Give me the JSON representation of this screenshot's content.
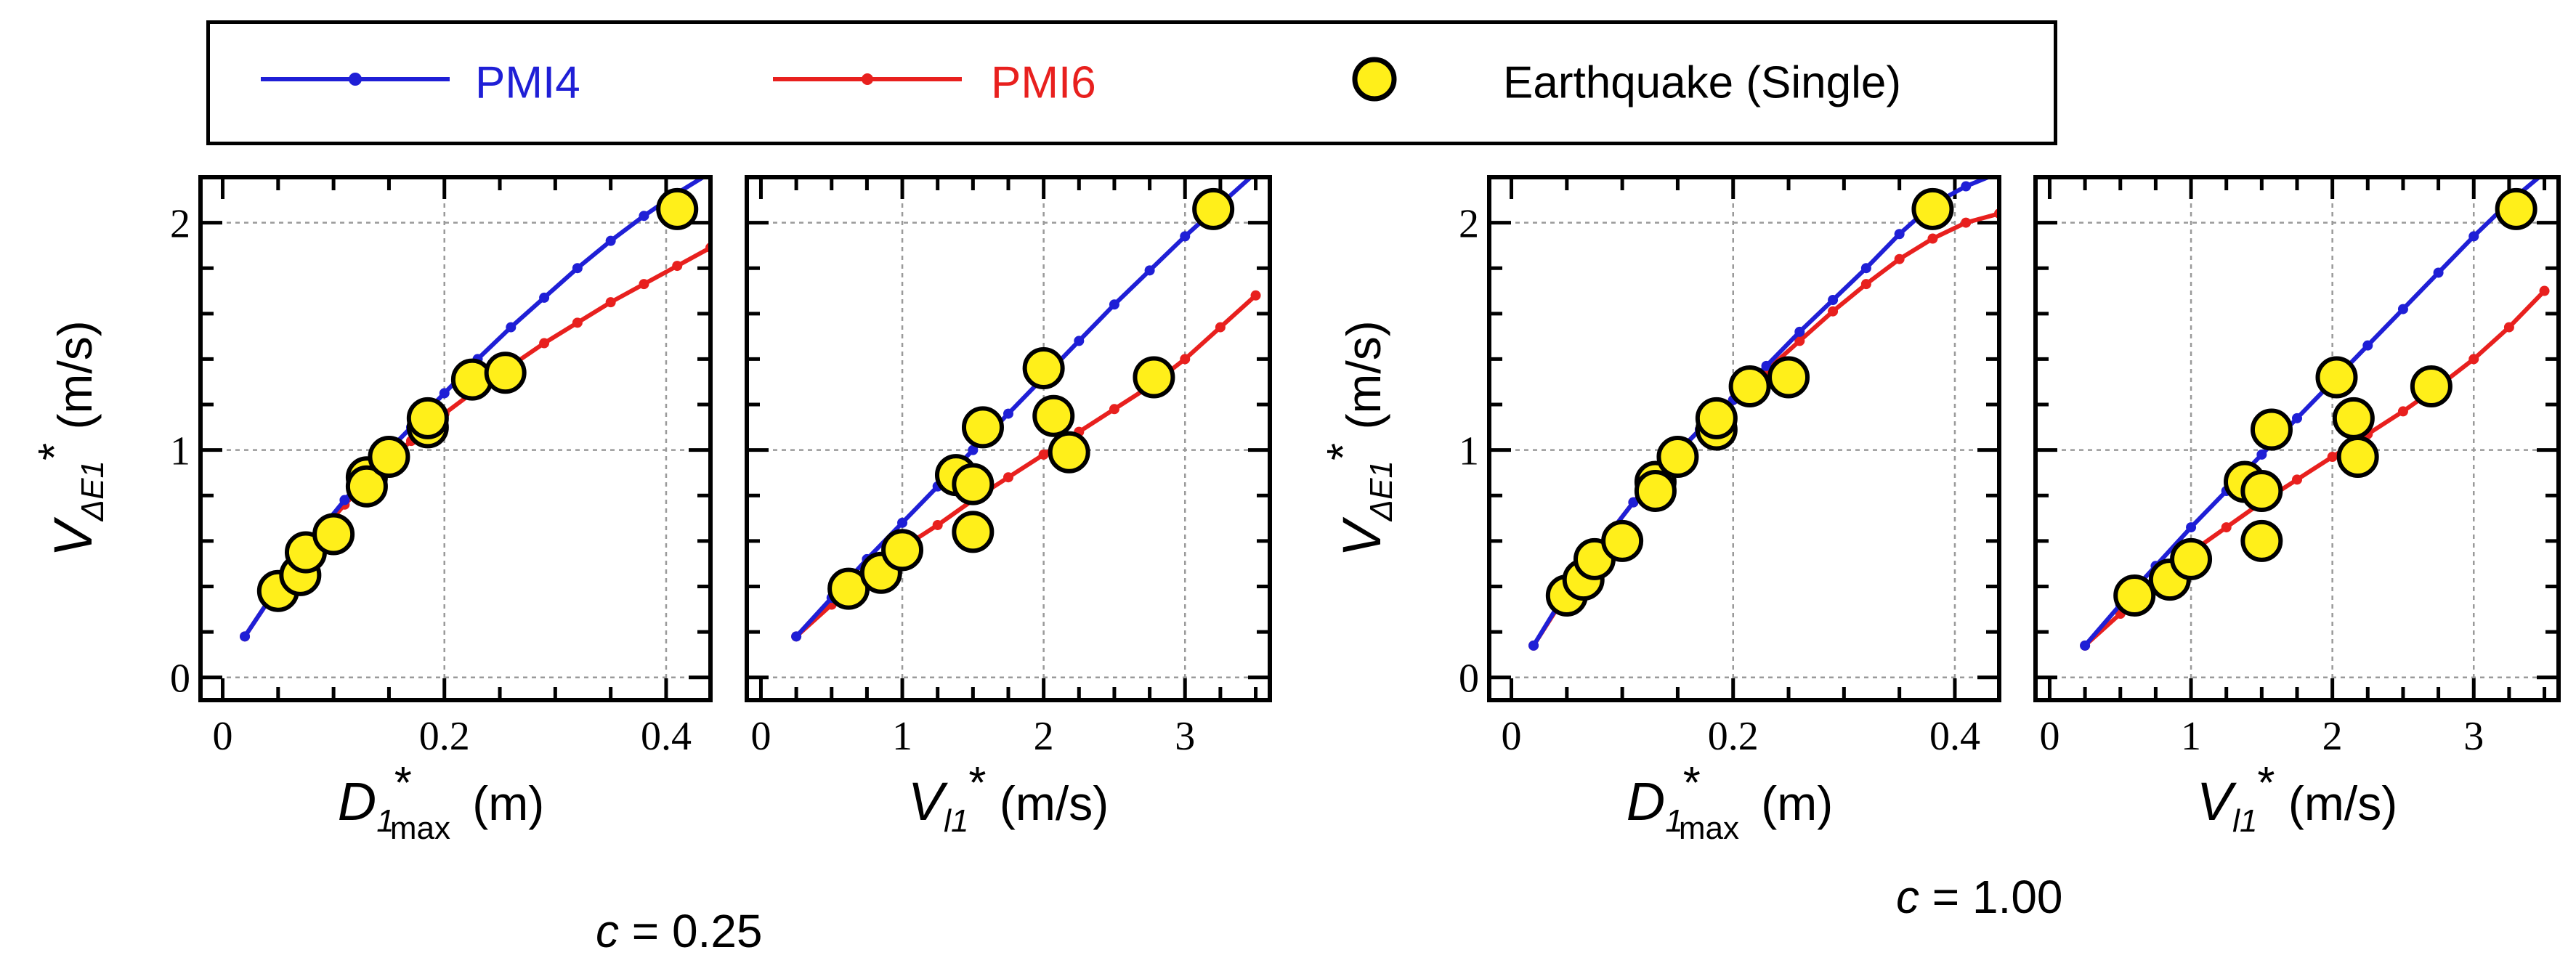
{
  "legend": {
    "pmi4_label": "PMI4",
    "pmi6_label": "PMI6",
    "earthquake_label": "Earthquake (Single)"
  },
  "colors": {
    "pmi4": "#1f1fd6",
    "pmi6": "#e8201e",
    "earthquake_fill": "#ffef1a",
    "grid": "#9a9a9a"
  },
  "captions": {
    "left": {
      "var": "c",
      "text": " = 0.25"
    },
    "right": {
      "var": "c",
      "text": " = 1.00"
    }
  },
  "axis_titles": {
    "y": {
      "main": "V",
      "sub": "ΔE1",
      "sup": "*",
      "unit": " (m/s)"
    },
    "x_disp": {
      "main": "D",
      "sub": "1",
      "sup": "*",
      "sub2": "max",
      "unit": " (m)"
    },
    "x_vel": {
      "main": "V",
      "sub": "l1",
      "sup": "*",
      "unit": " (m/s)"
    }
  },
  "chart_data": [
    {
      "type": "scatter+line",
      "id": "c025-disp",
      "group": "c = 0.25",
      "xlabel": "D1*max (m)",
      "ylabel": "VΔE1* (m/s)",
      "xlim": [
        -0.02,
        0.44
      ],
      "ylim": [
        -0.1,
        2.2
      ],
      "xticks": [
        0,
        0.2,
        0.4
      ],
      "xtick_labels": [
        "0",
        "0.2",
        "0.4"
      ],
      "yticks": [
        0,
        1,
        2
      ],
      "ytick_labels": [
        "0",
        "1",
        "2"
      ],
      "show_yticklabels": true,
      "series": [
        {
          "name": "PMI4",
          "x": [
            0.02,
            0.05,
            0.08,
            0.11,
            0.14,
            0.17,
            0.2,
            0.23,
            0.26,
            0.29,
            0.32,
            0.35,
            0.38,
            0.41,
            0.44
          ],
          "y": [
            0.18,
            0.4,
            0.6,
            0.78,
            0.95,
            1.1,
            1.25,
            1.4,
            1.54,
            1.67,
            1.8,
            1.92,
            2.03,
            2.13,
            2.22
          ]
        },
        {
          "name": "PMI6",
          "x": [
            0.02,
            0.05,
            0.08,
            0.11,
            0.14,
            0.17,
            0.2,
            0.23,
            0.26,
            0.29,
            0.32,
            0.35,
            0.38,
            0.41,
            0.44
          ],
          "y": [
            0.18,
            0.4,
            0.59,
            0.76,
            0.91,
            1.04,
            1.16,
            1.27,
            1.37,
            1.47,
            1.56,
            1.65,
            1.73,
            1.81,
            1.89
          ]
        },
        {
          "name": "Earthquake (Single)",
          "x": [
            0.05,
            0.07,
            0.075,
            0.1,
            0.13,
            0.13,
            0.15,
            0.185,
            0.185,
            0.225,
            0.255,
            0.41
          ],
          "y": [
            0.38,
            0.45,
            0.55,
            0.63,
            0.88,
            0.84,
            0.97,
            1.1,
            1.14,
            1.31,
            1.34,
            2.06
          ]
        }
      ]
    },
    {
      "type": "scatter+line",
      "id": "c025-vel",
      "group": "c = 0.25",
      "xlabel": "Vl1* (m/s)",
      "ylabel": "VΔE1* (m/s)",
      "xlim": [
        -0.1,
        3.6
      ],
      "ylim": [
        -0.1,
        2.2
      ],
      "xticks": [
        0,
        1,
        2,
        3
      ],
      "xtick_labels": [
        "0",
        "1",
        "2",
        "3"
      ],
      "yticks": [
        0,
        1,
        2
      ],
      "ytick_labels": [
        "0",
        "1",
        "2"
      ],
      "show_yticklabels": false,
      "series": [
        {
          "name": "PMI4",
          "x": [
            0.25,
            0.5,
            0.75,
            1.0,
            1.25,
            1.5,
            1.75,
            2.0,
            2.25,
            2.5,
            2.75,
            3.0,
            3.25,
            3.5
          ],
          "y": [
            0.18,
            0.35,
            0.52,
            0.68,
            0.84,
            1.0,
            1.16,
            1.32,
            1.48,
            1.64,
            1.79,
            1.94,
            2.08,
            2.22
          ]
        },
        {
          "name": "PMI6",
          "x": [
            0.25,
            0.5,
            0.75,
            1.0,
            1.25,
            1.5,
            1.75,
            2.0,
            2.25,
            2.5,
            2.75,
            3.0,
            3.25,
            3.5
          ],
          "y": [
            0.18,
            0.32,
            0.45,
            0.57,
            0.67,
            0.78,
            0.88,
            0.98,
            1.08,
            1.18,
            1.28,
            1.4,
            1.54,
            1.68
          ]
        },
        {
          "name": "Earthquake (Single)",
          "x": [
            0.62,
            0.85,
            1.0,
            1.38,
            1.5,
            1.5,
            1.57,
            2.0,
            2.07,
            2.18,
            2.78,
            3.2
          ],
          "y": [
            0.39,
            0.46,
            0.56,
            0.89,
            0.85,
            0.64,
            1.1,
            1.36,
            1.15,
            0.99,
            1.32,
            2.06
          ]
        }
      ]
    },
    {
      "type": "scatter+line",
      "id": "c100-disp",
      "group": "c = 1.00",
      "xlabel": "D1*max (m)",
      "ylabel": "VΔE1* (m/s)",
      "xlim": [
        -0.02,
        0.44
      ],
      "ylim": [
        -0.1,
        2.2
      ],
      "xticks": [
        0,
        0.2,
        0.4
      ],
      "xtick_labels": [
        "0",
        "0.2",
        "0.4"
      ],
      "yticks": [
        0,
        1,
        2
      ],
      "ytick_labels": [
        "0",
        "1",
        "2"
      ],
      "show_yticklabels": true,
      "series": [
        {
          "name": "PMI4",
          "x": [
            0.02,
            0.05,
            0.08,
            0.11,
            0.14,
            0.17,
            0.2,
            0.23,
            0.26,
            0.29,
            0.32,
            0.35,
            0.38,
            0.41,
            0.44
          ],
          "y": [
            0.14,
            0.38,
            0.58,
            0.77,
            0.94,
            1.09,
            1.22,
            1.37,
            1.52,
            1.66,
            1.8,
            1.95,
            2.08,
            2.16,
            2.22
          ]
        },
        {
          "name": "PMI6",
          "x": [
            0.02,
            0.05,
            0.08,
            0.11,
            0.14,
            0.17,
            0.2,
            0.23,
            0.26,
            0.29,
            0.32,
            0.35,
            0.38,
            0.41,
            0.44
          ],
          "y": [
            0.14,
            0.37,
            0.58,
            0.77,
            0.94,
            1.09,
            1.22,
            1.35,
            1.48,
            1.61,
            1.73,
            1.84,
            1.93,
            2.0,
            2.04
          ]
        },
        {
          "name": "Earthquake (Single)",
          "x": [
            0.05,
            0.065,
            0.075,
            0.1,
            0.13,
            0.13,
            0.15,
            0.185,
            0.185,
            0.215,
            0.25,
            0.38
          ],
          "y": [
            0.36,
            0.43,
            0.52,
            0.6,
            0.86,
            0.82,
            0.97,
            1.09,
            1.14,
            1.28,
            1.32,
            2.06
          ]
        }
      ]
    },
    {
      "type": "scatter+line",
      "id": "c100-vel",
      "group": "c = 1.00",
      "xlabel": "Vl1* (m/s)",
      "ylabel": "VΔE1* (m/s)",
      "xlim": [
        -0.1,
        3.6
      ],
      "ylim": [
        -0.1,
        2.2
      ],
      "xticks": [
        0,
        1,
        2,
        3
      ],
      "xtick_labels": [
        "0",
        "1",
        "2",
        "3"
      ],
      "yticks": [
        0,
        1,
        2
      ],
      "ytick_labels": [
        "0",
        "1",
        "2"
      ],
      "show_yticklabels": false,
      "series": [
        {
          "name": "PMI4",
          "x": [
            0.25,
            0.5,
            0.75,
            1.0,
            1.25,
            1.5,
            1.75,
            2.0,
            2.25,
            2.5,
            2.75,
            3.0,
            3.25,
            3.5
          ],
          "y": [
            0.14,
            0.32,
            0.49,
            0.66,
            0.82,
            0.98,
            1.14,
            1.3,
            1.46,
            1.62,
            1.78,
            1.94,
            2.09,
            2.22
          ]
        },
        {
          "name": "PMI6",
          "x": [
            0.25,
            0.5,
            0.75,
            1.0,
            1.25,
            1.5,
            1.75,
            2.0,
            2.25,
            2.5,
            2.75,
            3.0,
            3.25,
            3.5
          ],
          "y": [
            0.14,
            0.28,
            0.42,
            0.55,
            0.66,
            0.77,
            0.87,
            0.97,
            1.07,
            1.17,
            1.28,
            1.4,
            1.54,
            1.7
          ]
        },
        {
          "name": "Earthquake (Single)",
          "x": [
            0.6,
            0.85,
            1.0,
            1.38,
            1.5,
            1.5,
            1.57,
            2.03,
            2.15,
            2.18,
            2.7,
            3.3
          ],
          "y": [
            0.36,
            0.43,
            0.52,
            0.86,
            0.82,
            0.6,
            1.09,
            1.32,
            1.14,
            0.97,
            1.28,
            2.06
          ]
        }
      ]
    }
  ]
}
